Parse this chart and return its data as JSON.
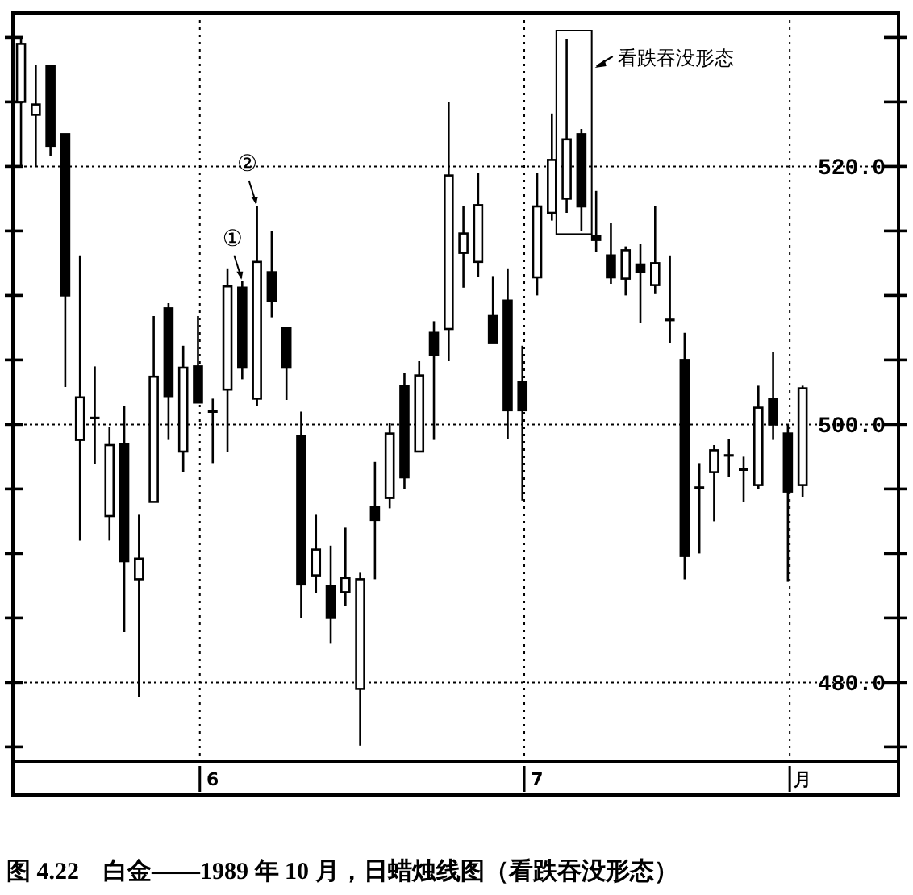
{
  "chart_data": {
    "type": "candlestick",
    "title": "图 4.22　白金——1989 年 10 月，日蜡烛线图（看跌吞没形态）",
    "categories": [
      null,
      null,
      null,
      null,
      null,
      null,
      null,
      null,
      null,
      null,
      null,
      null,
      null,
      "6",
      null,
      null,
      null,
      null,
      null,
      null,
      null,
      null,
      null,
      null,
      null,
      null,
      null,
      null,
      null,
      null,
      null,
      null,
      null,
      null,
      null,
      "7",
      null,
      null,
      null,
      null,
      null,
      null,
      null,
      null,
      null,
      null,
      null,
      null,
      null,
      null,
      null,
      null,
      null,
      "月"
    ],
    "ohlc": [
      [
        525,
        530,
        520,
        529.5
      ],
      [
        524,
        527.9,
        520,
        524.8
      ],
      [
        527.8,
        527.9,
        520.8,
        521.6
      ],
      [
        522.5,
        522.5,
        502.9,
        510
      ],
      [
        498.8,
        513.1,
        491,
        502.1
      ],
      [
        500.5,
        504.5,
        496.9,
        500.5
      ],
      [
        492.9,
        499.8,
        491,
        498.4
      ],
      [
        498.5,
        501.4,
        483.9,
        489.4
      ],
      [
        488,
        493,
        478.9,
        489.6
      ],
      [
        494,
        508.4,
        494,
        503.7
      ],
      [
        509,
        509.4,
        498.8,
        502.2
      ],
      [
        497.9,
        506.1,
        496.3,
        504.4
      ],
      [
        504.5,
        508.4,
        501.7,
        501.7
      ],
      [
        501,
        502,
        497,
        501
      ],
      [
        502.7,
        512.1,
        497.9,
        510.7
      ],
      [
        510.6,
        511.1,
        503.5,
        504.4
      ],
      [
        502,
        516.9,
        501.4,
        512.6
      ],
      [
        511.8,
        515,
        508.3,
        509.6
      ],
      [
        507.5,
        507.5,
        501.9,
        504.4
      ],
      [
        499.1,
        501,
        485,
        487.6
      ],
      [
        488.3,
        493,
        486.9,
        490.3
      ],
      [
        487.5,
        490.6,
        483,
        485
      ],
      [
        487,
        492,
        485.9,
        488.1
      ],
      [
        479.5,
        488.5,
        475.1,
        488
      ],
      [
        493.6,
        497.1,
        488,
        492.6
      ],
      [
        494.3,
        500.1,
        493.5,
        499.3
      ],
      [
        503,
        504,
        495,
        495.9
      ],
      [
        497.9,
        504.9,
        497.9,
        503.8
      ],
      [
        507.1,
        508,
        498.8,
        505.4
      ],
      [
        507.4,
        525,
        504.9,
        519.3
      ],
      [
        513.3,
        516.9,
        510.6,
        514.8
      ],
      [
        512.6,
        519.5,
        511.4,
        517
      ],
      [
        508.4,
        511.5,
        506.3,
        506.3
      ],
      [
        509.6,
        512.1,
        498.9,
        501.1
      ],
      [
        503.3,
        506.1,
        494.1,
        501.1
      ],
      [
        511.4,
        519.5,
        510,
        516.9
      ],
      [
        516.4,
        524.1,
        515.8,
        520.5
      ],
      [
        517.5,
        529.9,
        516.4,
        522.1
      ],
      [
        522.5,
        522.9,
        515,
        516.9
      ],
      [
        514.6,
        518.1,
        513.4,
        514.3
      ],
      [
        513.1,
        515.6,
        510.9,
        511.4
      ],
      [
        511.3,
        513.8,
        510,
        513.5
      ],
      [
        512.4,
        514,
        507.9,
        511.8
      ],
      [
        510.8,
        516.9,
        510.1,
        512.5
      ],
      [
        508.1,
        513.1,
        506.3,
        508.1
      ],
      [
        505,
        507.1,
        488,
        489.8
      ],
      [
        495.1,
        497,
        490,
        495.1
      ],
      [
        496.3,
        498.4,
        492.5,
        498
      ],
      [
        497.6,
        498.9,
        495.9,
        497.6
      ],
      [
        496.5,
        497.5,
        494,
        496.5
      ],
      [
        495.3,
        503,
        495,
        501.3
      ],
      [
        502,
        505.6,
        498.8,
        500
      ],
      [
        499.3,
        500,
        487.8,
        494.8
      ],
      [
        495.3,
        503,
        494.4,
        502.8
      ]
    ],
    "ylim": [
      473.9,
      531.9
    ],
    "yticks": [
      {
        "value": 475,
        "label": null
      },
      {
        "value": 480,
        "label": "480.0"
      },
      {
        "value": 485,
        "label": null
      },
      {
        "value": 490,
        "label": null
      },
      {
        "value": 495,
        "label": null
      },
      {
        "value": 500,
        "label": "500.0"
      },
      {
        "value": 505,
        "label": null
      },
      {
        "value": 510,
        "label": null
      },
      {
        "value": 515,
        "label": null
      },
      {
        "value": 520,
        "label": "520.0"
      },
      {
        "value": 525,
        "label": null
      },
      {
        "value": 530,
        "label": null
      }
    ],
    "grid": true,
    "annotations": [
      "①",
      "②",
      "看跌吞没形态"
    ]
  }
}
